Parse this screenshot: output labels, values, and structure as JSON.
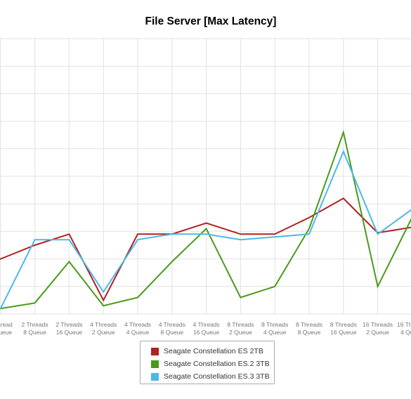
{
  "chart_data": {
    "type": "line",
    "title": "File Server [Max Latency]",
    "categories": [
      [
        "1 Thread",
        "1 Queue"
      ],
      [
        "1 Thread",
        "2 Queue"
      ],
      [
        "2 Threads",
        "8 Queue"
      ],
      [
        "2 Threads",
        "16 Queue"
      ],
      [
        "4 Threads",
        "2 Queue"
      ],
      [
        "4 Threads",
        "4 Queue"
      ],
      [
        "4 Threads",
        "8 Queue"
      ],
      [
        "4 Threads",
        "16 Queue"
      ],
      [
        "8 Threads",
        "2 Queue"
      ],
      [
        "8 Threads",
        "4 Queue"
      ],
      [
        "8 Threads",
        "8 Queue"
      ],
      [
        "8 Threads",
        "16 Queue"
      ],
      [
        "16 Threads",
        "2 Queue"
      ],
      [
        "16 Threads",
        "4 Queue"
      ]
    ],
    "ylim": [
      0,
      10
    ],
    "grid": true,
    "legend_position": "bottom",
    "series": [
      {
        "name": "Seagate Constellation ES 2TB",
        "color": "#b22020",
        "values": [
          1.3,
          2.0,
          2.5,
          2.9,
          0.5,
          2.9,
          2.9,
          3.3,
          2.9,
          2.9,
          3.5,
          4.2,
          2.95,
          3.15
        ]
      },
      {
        "name": "Seagate Constellation ES.2 3TB",
        "color": "#4a9a1a",
        "values": [
          0.3,
          0.2,
          0.4,
          1.9,
          0.3,
          0.6,
          1.9,
          3.1,
          0.6,
          1.0,
          3.1,
          6.6,
          1.0,
          3.5
        ]
      },
      {
        "name": "Seagate Constellation ES.3 3TB",
        "color": "#4db8e8",
        "values": [
          0.2,
          0.2,
          2.7,
          2.7,
          0.8,
          2.7,
          2.9,
          2.9,
          2.7,
          2.8,
          2.9,
          5.9,
          2.9,
          3.8
        ]
      }
    ]
  }
}
